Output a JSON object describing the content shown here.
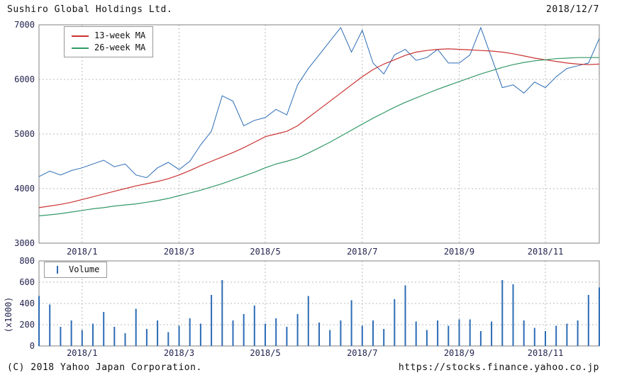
{
  "header": {
    "title": "Sushiro Global Holdings Ltd.",
    "date": "2018/12/7"
  },
  "footer": {
    "copyright": "(C) 2018 Yahoo Japan Corporation.",
    "url": "https://stocks.finance.yahoo.co.jp"
  },
  "colors": {
    "price_blue": "#2c6cb5",
    "ma13_red": "#cc3333",
    "ma26_green": "#339966",
    "grid_gray": "#bbbbbb",
    "border_gray": "#808080",
    "axis_text": "#23234f"
  },
  "chart_data": [
    {
      "type": "line",
      "title": "Sushiro Global Holdings Ltd. weekly price with moving averages",
      "ylim": [
        3000,
        7000
      ],
      "y_ticks": [
        3000,
        4000,
        5000,
        6000,
        7000
      ],
      "x_tick_labels": [
        "2018/1",
        "2018/3",
        "2018/5",
        "2018/7",
        "2018/9",
        "2018/11"
      ],
      "x_tick_indices": [
        4,
        13,
        21,
        30,
        39,
        47
      ],
      "grid": true,
      "legend_position": "top-left",
      "series": [
        {
          "name": "price",
          "color": "#2c6cb5",
          "width": 1,
          "values": [
            4220,
            4320,
            4250,
            4330,
            4380,
            4450,
            4520,
            4400,
            4450,
            4250,
            4200,
            4380,
            4480,
            4350,
            4500,
            4800,
            5050,
            5700,
            5600,
            5150,
            5250,
            5300,
            5450,
            5350,
            5900,
            6200,
            6450,
            6700,
            6950,
            6500,
            6900,
            6300,
            6100,
            6450,
            6550,
            6350,
            6400,
            6550,
            6300,
            6300,
            6450,
            6950,
            6400,
            5850,
            5900,
            5750,
            5950,
            5850,
            6050,
            6200,
            6250,
            6300,
            6750
          ]
        },
        {
          "name": "13-week MA",
          "color": "#cc3333",
          "width": 1.2,
          "values": [
            3650,
            3680,
            3710,
            3750,
            3800,
            3850,
            3900,
            3950,
            4000,
            4050,
            4090,
            4130,
            4180,
            4250,
            4330,
            4420,
            4500,
            4580,
            4660,
            4750,
            4850,
            4950,
            5000,
            5050,
            5150,
            5300,
            5450,
            5600,
            5750,
            5900,
            6050,
            6180,
            6280,
            6360,
            6440,
            6500,
            6530,
            6550,
            6560,
            6550,
            6540,
            6530,
            6520,
            6500,
            6470,
            6430,
            6390,
            6360,
            6330,
            6300,
            6280,
            6270,
            6280
          ]
        },
        {
          "name": "26-week MA",
          "color": "#339966",
          "width": 1.2,
          "values": [
            3500,
            3520,
            3540,
            3570,
            3600,
            3630,
            3650,
            3680,
            3700,
            3720,
            3750,
            3780,
            3820,
            3870,
            3920,
            3970,
            4030,
            4090,
            4160,
            4230,
            4300,
            4380,
            4450,
            4500,
            4560,
            4650,
            4750,
            4850,
            4960,
            5070,
            5180,
            5290,
            5390,
            5490,
            5580,
            5660,
            5740,
            5820,
            5890,
            5960,
            6030,
            6100,
            6160,
            6220,
            6270,
            6310,
            6340,
            6360,
            6380,
            6390,
            6400,
            6400,
            6400
          ]
        }
      ]
    },
    {
      "type": "bar",
      "name": "Volume",
      "ylabel": "(x1000)",
      "ylim": [
        0,
        800
      ],
      "y_ticks": [
        0,
        200,
        400,
        600,
        800
      ],
      "x_tick_labels": [
        "2018/1",
        "2018/3",
        "2018/5",
        "2018/7",
        "2018/9",
        "2018/11"
      ],
      "x_tick_indices": [
        4,
        13,
        21,
        30,
        39,
        47
      ],
      "grid": true,
      "color": "#2c6cb5",
      "values": [
        470,
        390,
        180,
        240,
        150,
        210,
        320,
        180,
        120,
        350,
        160,
        240,
        130,
        190,
        260,
        210,
        480,
        620,
        240,
        300,
        380,
        210,
        260,
        180,
        300,
        470,
        220,
        150,
        240,
        430,
        190,
        240,
        160,
        440,
        570,
        230,
        150,
        240,
        190,
        250,
        250,
        140,
        230,
        620,
        580,
        240,
        170,
        140,
        190,
        210,
        240,
        480,
        550
      ]
    }
  ]
}
